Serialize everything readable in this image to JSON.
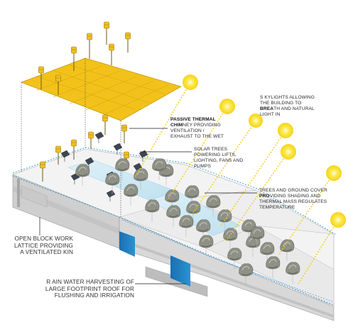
{
  "colors": {
    "roof_yellow": "#f2c21b",
    "roof_yellow_dark": "#d9a90f",
    "sun_yellow": "#f7e33a",
    "water_blue": "#1a7ac0",
    "water_light": "#bfe3f3",
    "ground": "#f2f2f2",
    "leader": "#1a1a1a"
  },
  "icons": [
    "sun-icon",
    "solar-tree-icon",
    "tree-icon",
    "solar-panel-icon"
  ],
  "labels": {
    "passive_chimney": {
      "bold": "PASSIVE THERMAL",
      "line2_bold": "CHIM",
      "line2_rest": "NEY PROVIDING",
      "line3": "VENTILATION  /",
      "line4": "EXHAUST TO THE WET"
    },
    "skylights": {
      "line1": "S KYLIGHTS ALLOWING",
      "line2": "THE BUILDING TO",
      "line3_bold": "BREA",
      "line3_rest": "TH AND NATURAL",
      "line4": "LIGHT IN"
    },
    "solar_trees": {
      "line1": "SOLAR TREES",
      "line2": "POWERING LIFTS,",
      "line3": "LIGHTING, FANS AND",
      "line4": "PUMPS"
    },
    "trees_ground": {
      "line1": "TREES AND GROUND COVER",
      "line2_bold": "PRO",
      "line2_rest": "VIDING SHADING AND",
      "line3": "THERMAL MASS REGULATES",
      "line4": "TEMPERATURE"
    },
    "block_work": {
      "line1": "OPEN BLOCK WORK",
      "line2": "LATTICE PROVIDING",
      "line3": "A VENTILATED  KIN"
    },
    "rain_water": {
      "line1": "R AIN WATER HARVESTING  OF",
      "line2": "LARGE FOOTPRINT ROOF FOR",
      "line3": "FLUSHING AND IRRIGATION"
    }
  }
}
